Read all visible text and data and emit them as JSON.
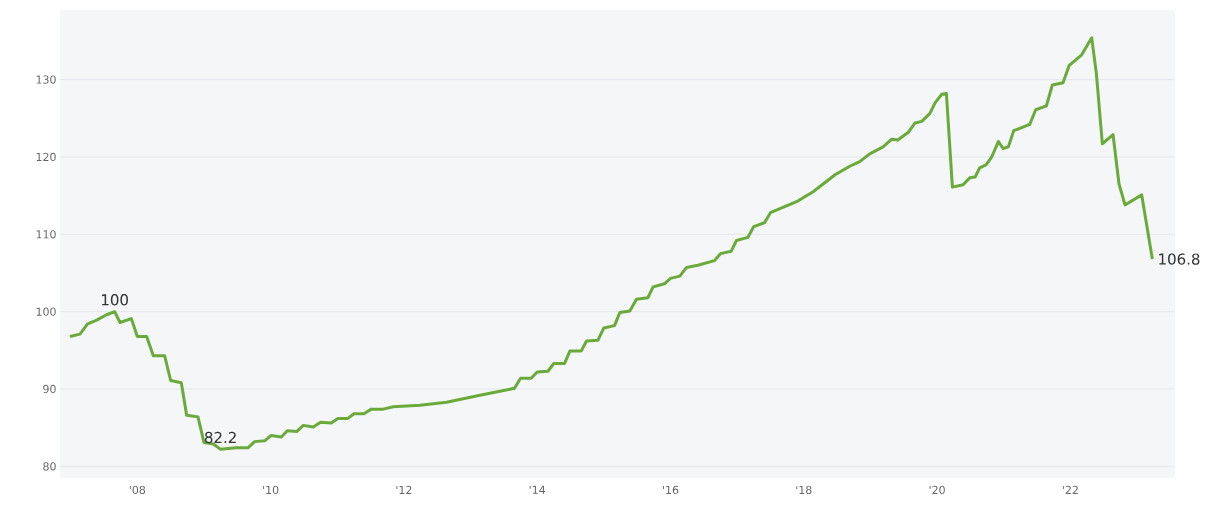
{
  "chart_data": {
    "type": "line",
    "x": [
      2006.99,
      2007.14,
      2007.25,
      2007.39,
      2007.54,
      2007.66,
      2007.74,
      2007.91,
      2008.0,
      2008.14,
      2008.24,
      2008.41,
      2008.5,
      2008.66,
      2008.74,
      2008.91,
      2009.0,
      2009.14,
      2009.25,
      2009.36,
      2009.49,
      2009.66,
      2009.76,
      2009.91,
      2010.01,
      2010.16,
      2010.25,
      2010.39,
      2010.49,
      2010.64,
      2010.75,
      2010.91,
      2011.01,
      2011.16,
      2011.25,
      2011.4,
      2011.51,
      2011.69,
      2011.84,
      2012.24,
      2012.64,
      2013.14,
      2013.44,
      2013.66,
      2013.75,
      2013.91,
      2014.0,
      2014.16,
      2014.25,
      2014.41,
      2014.49,
      2014.66,
      2014.74,
      2014.91,
      2015.0,
      2015.16,
      2015.24,
      2015.39,
      2015.49,
      2015.66,
      2015.74,
      2015.91,
      2016.0,
      2016.14,
      2016.24,
      2016.41,
      2016.66,
      2016.75,
      2016.91,
      2016.99,
      2017.16,
      2017.25,
      2017.41,
      2017.5,
      2017.91,
      2018.14,
      2018.29,
      2018.47,
      2018.69,
      2018.84,
      2018.99,
      2019.19,
      2019.32,
      2019.41,
      2019.57,
      2019.67,
      2019.77,
      2019.89,
      2019.97,
      2020.07,
      2020.14,
      2020.23,
      2020.39,
      2020.49,
      2020.57,
      2020.64,
      2020.74,
      2020.82,
      2020.92,
      2020.99,
      2021.07,
      2021.15,
      2021.39,
      2021.48,
      2021.64,
      2021.73,
      2021.89,
      2021.98,
      2022.17,
      2022.32,
      2022.39,
      2022.48,
      2022.64,
      2022.73,
      2022.82,
      2023.07,
      2023.23
    ],
    "series": [
      {
        "color": "#6aaa3a",
        "values": [
          96.8,
          97.1,
          98.4,
          98.9,
          99.6,
          100,
          98.6,
          99.1,
          96.8,
          96.8,
          94.3,
          94.3,
          91.1,
          90.8,
          86.6,
          86.4,
          83.1,
          82.9,
          82.2,
          82.3,
          82.4,
          82.4,
          83.2,
          83.3,
          84.0,
          83.8,
          84.6,
          84.5,
          85.3,
          85.1,
          85.7,
          85.6,
          86.2,
          86.2,
          86.8,
          86.8,
          87.4,
          87.4,
          87.7,
          87.9,
          88.3,
          89.2,
          89.7,
          90.1,
          91.4,
          91.4,
          92.2,
          92.3,
          93.3,
          93.3,
          94.9,
          94.9,
          96.2,
          96.3,
          97.9,
          98.2,
          99.9,
          100.1,
          101.6,
          101.8,
          103.2,
          103.6,
          104.3,
          104.6,
          105.7,
          106.0,
          106.6,
          107.5,
          107.8,
          109.2,
          109.6,
          111.0,
          111.5,
          112.8,
          114.3,
          115.5,
          116.5,
          117.7,
          118.8,
          119.4,
          120.4,
          121.3,
          122.3,
          122.2,
          123.2,
          124.4,
          124.6,
          125.6,
          127.0,
          128.1,
          128.2,
          116.1,
          116.4,
          117.3,
          117.4,
          118.6,
          119.0,
          120.0,
          122.0,
          121.1,
          121.3,
          123.4,
          124.2,
          126.1,
          126.6,
          129.3,
          129.6,
          131.8,
          133.2,
          135.4,
          130.8,
          121.7,
          122.9,
          116.5,
          113.8,
          115.1,
          106.8
        ]
      }
    ],
    "xlim": [
      2006.84,
      2023.57
    ],
    "ylim": [
      78.5,
      139
    ],
    "xticks": [
      {
        "value": 2008,
        "label": "'08"
      },
      {
        "value": 2010,
        "label": "'10"
      },
      {
        "value": 2012,
        "label": "'12"
      },
      {
        "value": 2014,
        "label": "'14"
      },
      {
        "value": 2016,
        "label": "'16"
      },
      {
        "value": 2018,
        "label": "'18"
      },
      {
        "value": 2020,
        "label": "'20"
      },
      {
        "value": 2022,
        "label": "'22"
      }
    ],
    "yticks": [
      80,
      90,
      100,
      110,
      120,
      130
    ],
    "grid": "y",
    "marker": "none",
    "line_style": "solid",
    "annotations": [
      {
        "text": "100",
        "x": 2007.66,
        "y": 100
      },
      {
        "text": "82.2",
        "x": 2009.25,
        "y": 82.2
      },
      {
        "text": "106.8",
        "x": 2023.23,
        "y": 106.8
      }
    ]
  }
}
